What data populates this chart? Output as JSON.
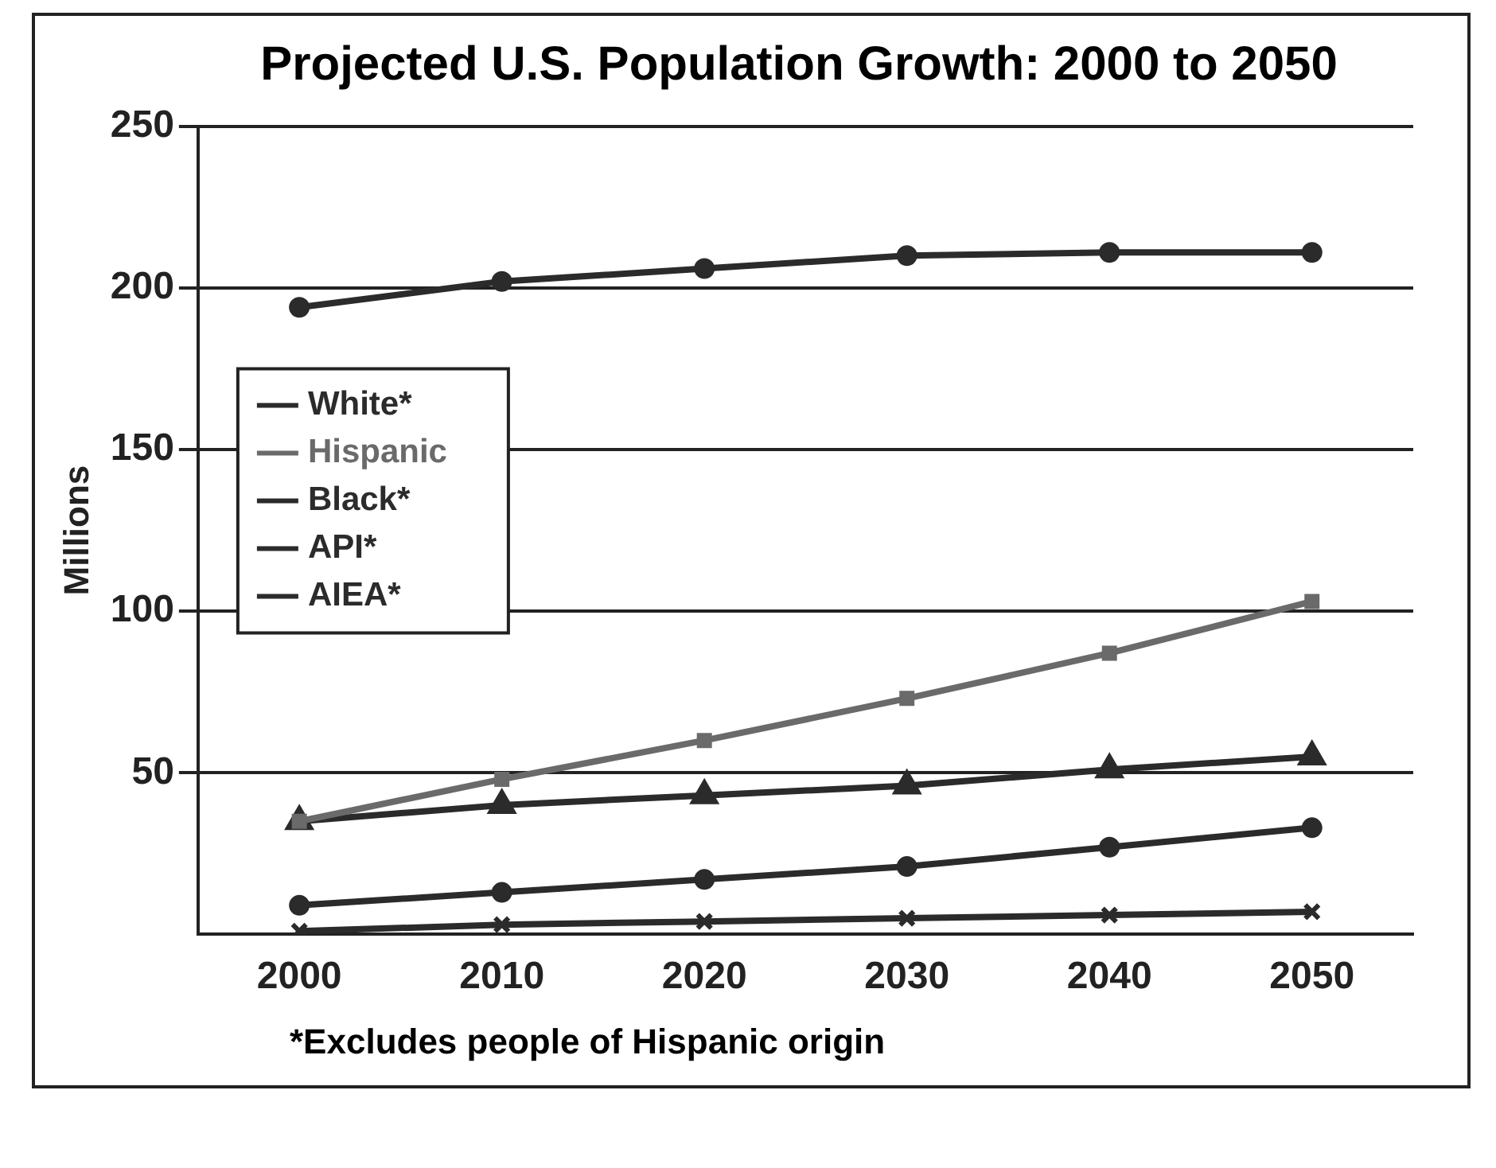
{
  "chart_data": {
    "type": "line",
    "title": "Projected U.S. Population Growth: 2000 to 2050",
    "ylabel": "Millions",
    "categories": [
      "2000",
      "2010",
      "2020",
      "2030",
      "2040",
      "2050"
    ],
    "series": [
      {
        "name": "White*",
        "color": "#2b2b2b",
        "marker": "circle",
        "values": [
          194,
          202,
          206,
          210,
          211,
          211
        ]
      },
      {
        "name": "Hispanic",
        "color": "#6a6a6a",
        "marker": "square",
        "values": [
          35,
          48,
          60,
          73,
          87,
          103
        ]
      },
      {
        "name": "Black*",
        "color": "#2b2b2b",
        "marker": "triangle",
        "values": [
          35,
          40,
          43,
          46,
          51,
          55
        ]
      },
      {
        "name": "API*",
        "color": "#2b2b2b",
        "marker": "circle",
        "values": [
          9,
          13,
          17,
          21,
          27,
          33
        ]
      },
      {
        "name": "AIEA*",
        "color": "#2b2b2b",
        "marker": "cross",
        "values": [
          1,
          3,
          4,
          5,
          6,
          7
        ]
      }
    ],
    "ylim": [
      0,
      250
    ],
    "yticks": [
      50,
      100,
      150,
      200,
      250
    ],
    "grid": "y",
    "legend": "top left",
    "line_style": "solid",
    "annotations": [
      "*Excludes people of Hispanic origin"
    ]
  }
}
